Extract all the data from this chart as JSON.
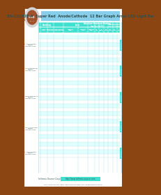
{
  "title": "BA-12D3UD-A  Super Red  Anode/Cathode  12 Bar Graph Array LED Light Bar",
  "company": "Isthmus Source Corp.",
  "website": "http://www.isthmus-source.com",
  "address": "TOLL FREE: 800-967-1897  Specifications subject to change without notice.",
  "bg_color": "#8B4513",
  "header_bg": "#87CEEB",
  "table_header_bg": "#40E0D0",
  "table_bg": "#E0FFFF",
  "footer_bg": "#40E0D0",
  "logo_color": "#C0C0C0"
}
